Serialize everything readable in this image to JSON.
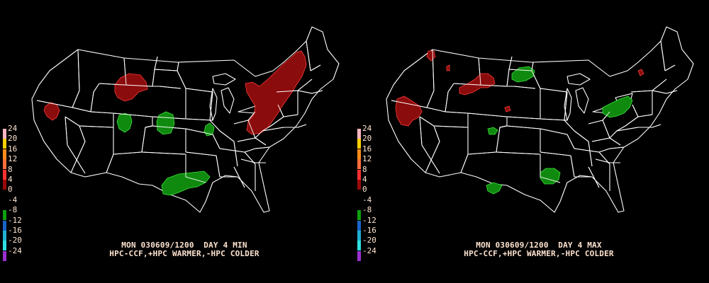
{
  "colors": {
    "background": "#000000",
    "map_lines": "#ffffff",
    "warm_fill": "#8b0c0c",
    "warm_edge": "#ff3b3b",
    "cold_fill": "#0f8a0f",
    "cold_edge": "#3be63b",
    "text": "#ffe4d0"
  },
  "legend": {
    "labels": [
      "24",
      "20",
      "16",
      "12",
      "8",
      "4",
      "0",
      "-4",
      "-8",
      "-12",
      "-16",
      "-20",
      "-24"
    ],
    "colors": [
      "#ffb6c1",
      "#ffd000",
      "#ff8c1a",
      "#ff6e3a",
      "#ff3030",
      "#9a0a0a",
      "#000000",
      "#000000",
      "#0fa00f",
      "#1a64c8",
      "#20b0d0",
      "#30e0e0",
      "#9a30d0"
    ]
  },
  "panels": [
    {
      "caption_line1": "MON 030609/1200  DAY 4 MIN",
      "caption_line2": "HPC-CCF,+HPC WARMER,-HPC COLDER",
      "anomaly_regions": [
        {
          "name": "northern-california-nevada",
          "sign": "warmer"
        },
        {
          "name": "montana-wyoming",
          "sign": "warmer"
        },
        {
          "name": "ohio-valley-northeast",
          "sign": "warmer"
        },
        {
          "name": "colorado",
          "sign": "colder"
        },
        {
          "name": "nebraska-kansas",
          "sign": "colder"
        },
        {
          "name": "missouri",
          "sign": "colder"
        },
        {
          "name": "texas",
          "sign": "colder"
        }
      ]
    },
    {
      "caption_line1": "MON 030609/1200  DAY 4 MAX",
      "caption_line2": "HPC-CCF,+HPC WARMER,-HPC COLDER",
      "anomaly_regions": [
        {
          "name": "northern-california",
          "sign": "warmer"
        },
        {
          "name": "montana-idaho",
          "sign": "warmer"
        },
        {
          "name": "washington-idaho",
          "sign": "warmer"
        },
        {
          "name": "new-york",
          "sign": "warmer"
        },
        {
          "name": "north-dakota",
          "sign": "colder"
        },
        {
          "name": "ohio-west-virginia",
          "sign": "colder"
        },
        {
          "name": "colorado",
          "sign": "colder"
        },
        {
          "name": "oklahoma-texas",
          "sign": "colder"
        },
        {
          "name": "west-texas",
          "sign": "colder"
        }
      ]
    }
  ]
}
